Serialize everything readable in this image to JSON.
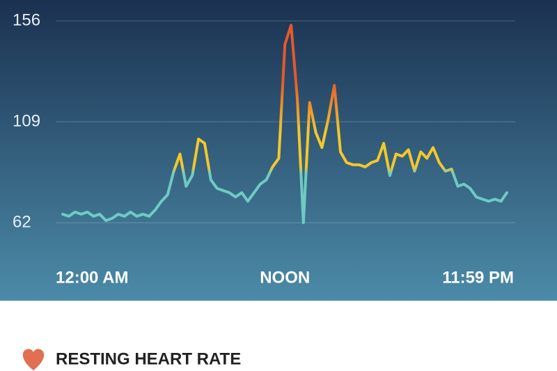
{
  "chart_data": {
    "type": "line",
    "x": [
      0,
      20,
      40,
      60,
      80,
      100,
      120,
      140,
      160,
      180,
      200,
      220,
      240,
      260,
      280,
      300,
      320,
      340,
      360,
      380,
      400,
      420,
      440,
      460,
      480,
      500,
      520,
      540,
      560,
      580,
      600,
      620,
      640,
      660,
      680,
      700,
      720,
      740,
      760,
      780,
      800,
      820,
      840,
      860,
      880,
      900,
      920,
      940,
      960,
      980,
      1000,
      1020,
      1040,
      1060,
      1080,
      1100,
      1120,
      1140,
      1160,
      1180,
      1200,
      1220,
      1240,
      1260,
      1280,
      1300,
      1320,
      1340,
      1360,
      1380,
      1400,
      1420,
      1439
    ],
    "values": [
      66,
      65,
      67,
      66,
      67,
      65,
      66,
      63,
      64,
      66,
      65,
      67,
      65,
      66,
      65,
      68,
      72,
      75,
      86,
      94,
      79,
      84,
      101,
      99,
      82,
      78,
      77,
      76,
      74,
      76,
      72,
      76,
      80,
      82,
      88,
      92,
      145,
      154,
      120,
      62,
      118,
      104,
      97,
      110,
      126,
      95,
      90,
      89,
      89,
      88,
      90,
      91,
      99,
      84,
      94,
      93,
      96,
      86,
      95,
      92,
      97,
      90,
      86,
      87,
      79,
      80,
      78,
      74,
      73,
      72,
      73,
      72,
      76
    ],
    "colors": [
      "#6fcac3",
      "#f4c82a",
      "#e5592b"
    ],
    "xlim": [
      0,
      1439
    ],
    "xticks": [
      {
        "value": 0,
        "label": "12:00 AM"
      },
      {
        "value": 720,
        "label": "NOON"
      },
      {
        "value": 1439,
        "label": "11:59 PM"
      }
    ],
    "ylim": [
      62,
      156
    ],
    "yticks": [
      62,
      109,
      156
    ],
    "grid": true
  },
  "footer": {
    "label": "RESTING HEART RATE"
  }
}
